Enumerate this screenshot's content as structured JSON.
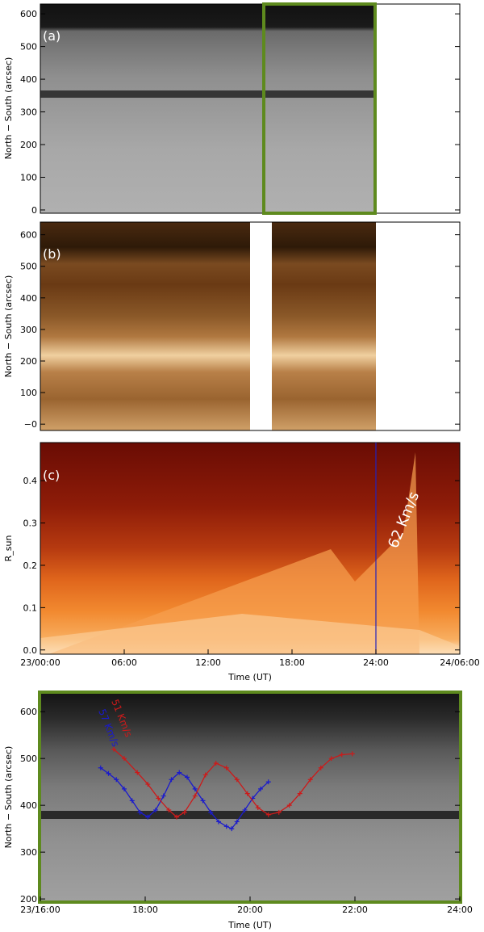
{
  "chart_data": [
    {
      "panel": "(a)",
      "type": "heatmap",
      "colormap": "grayscale",
      "ylabel": "North − South (arcsec)",
      "ylim": [
        -10,
        630
      ],
      "yticks": [
        0,
        100,
        200,
        300,
        400,
        500,
        600
      ],
      "xlim": [
        0,
        30
      ],
      "x_units": "hours since 23/00:00 UT",
      "data_coverage_hours": [
        0,
        23.5
      ],
      "dark_bands": [
        {
          "name": "filament",
          "y": 355
        },
        {
          "name": "top-dark-region",
          "y_range": [
            515,
            630
          ]
        }
      ],
      "highlight_box": {
        "x_range": [
          16,
          23.6
        ],
        "y_range": [
          -10,
          630
        ],
        "color": "#5e8a1e"
      }
    },
    {
      "panel": "(b)",
      "type": "heatmap",
      "colormap": "sepia",
      "ylabel": "North − South (arcsec)",
      "ylim": [
        -20,
        640
      ],
      "yticks": [
        0,
        100,
        200,
        300,
        400,
        500,
        600
      ],
      "ytick_labels": [
        "−0",
        "100",
        "200",
        "300",
        "400",
        "500",
        "600"
      ],
      "xlim": [
        0,
        30
      ],
      "data_gaps_hours": [
        [
          15,
          16.6
        ],
        [
          23.5,
          30
        ]
      ],
      "bright_band": {
        "y": 215
      }
    },
    {
      "panel": "(c)",
      "type": "heatmap",
      "colormap": "red-orange",
      "ylabel": "R_sun",
      "ylim": [
        -0.01,
        0.49
      ],
      "yticks": [
        0.0,
        0.1,
        0.2,
        0.3,
        0.4
      ],
      "ytick_labels": [
        "0.0",
        "0.1",
        "0.2",
        "0.3",
        "0.4"
      ],
      "xlim": [
        0,
        30
      ],
      "xticks": [
        0,
        6,
        12,
        18,
        24,
        30
      ],
      "xtick_labels": [
        "23/00:00",
        "06:00",
        "12:00",
        "18:00",
        "24:00",
        "24/06:00"
      ],
      "xlabel": "Time (UT)",
      "marker_line": {
        "x": 24,
        "color": "#2222bb"
      },
      "annotation": {
        "text": "62 Km/s",
        "color": "#ffffff"
      }
    },
    {
      "panel": "zoom",
      "type": "line",
      "background": "grayscale heatmap",
      "ylabel": "North − South (arcsec)",
      "ylim": [
        195,
        640
      ],
      "yticks": [
        200,
        300,
        400,
        500,
        600
      ],
      "xlim": [
        16,
        24
      ],
      "xticks": [
        16,
        18,
        20,
        22,
        24
      ],
      "xtick_labels": [
        "23/16:00",
        "18:00",
        "20:00",
        "22:00",
        "24:00"
      ],
      "xlabel": "Time (UT)",
      "frame_color": "#5e8a1e",
      "series": [
        {
          "name": "57 Km/s",
          "color": "#1a1acc",
          "points": [
            [
              17.15,
              480
            ],
            [
              17.3,
              468
            ],
            [
              17.45,
              455
            ],
            [
              17.6,
              435
            ],
            [
              17.75,
              410
            ],
            [
              17.9,
              385
            ],
            [
              18.05,
              375
            ],
            [
              18.2,
              390
            ],
            [
              18.35,
              420
            ],
            [
              18.5,
              455
            ],
            [
              18.65,
              470
            ],
            [
              18.8,
              460
            ],
            [
              18.95,
              435
            ],
            [
              19.1,
              410
            ],
            [
              19.25,
              385
            ],
            [
              19.4,
              365
            ],
            [
              19.55,
              355
            ],
            [
              19.65,
              350
            ],
            [
              19.75,
              365
            ],
            [
              19.9,
              390
            ],
            [
              20.05,
              415
            ],
            [
              20.2,
              435
            ],
            [
              20.35,
              450
            ]
          ]
        },
        {
          "name": "51 Km/s",
          "color": "#cc1a1a",
          "points": [
            [
              17.4,
              520
            ],
            [
              17.6,
              500
            ],
            [
              17.85,
              470
            ],
            [
              18.05,
              445
            ],
            [
              18.25,
              415
            ],
            [
              18.45,
              390
            ],
            [
              18.6,
              375
            ],
            [
              18.75,
              385
            ],
            [
              18.95,
              420
            ],
            [
              19.15,
              465
            ],
            [
              19.35,
              490
            ],
            [
              19.55,
              480
            ],
            [
              19.75,
              455
            ],
            [
              19.95,
              425
            ],
            [
              20.15,
              395
            ],
            [
              20.35,
              380
            ],
            [
              20.55,
              385
            ],
            [
              20.75,
              400
            ],
            [
              20.95,
              425
            ],
            [
              21.15,
              455
            ],
            [
              21.35,
              480
            ],
            [
              21.55,
              500
            ],
            [
              21.75,
              508
            ],
            [
              21.95,
              510
            ]
          ]
        }
      ],
      "annotations": [
        {
          "text": "51 Km/s",
          "color": "#cc1a1a"
        },
        {
          "text": "57 Km/s",
          "color": "#1a1acc"
        }
      ]
    }
  ]
}
